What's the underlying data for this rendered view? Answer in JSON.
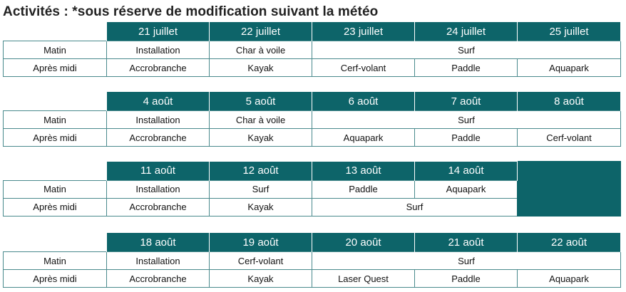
{
  "title": "Activités : *sous réserve de modification suivant la météo",
  "row_labels": {
    "morning": "Matin",
    "afternoon": "Après midi"
  },
  "weeks": [
    {
      "dates": [
        "21 juillet",
        "22 juillet",
        "23 juillet",
        "24 juillet",
        "25 juillet"
      ],
      "morning": [
        "Installation",
        "Char à voile",
        "Surf"
      ],
      "afternoon": [
        "Accrobranche",
        "Kayak",
        "Cerf-volant",
        "Paddle",
        "Aquapark"
      ]
    },
    {
      "dates": [
        "4 août",
        "5 août",
        "6 août",
        "7 août",
        "8 août"
      ],
      "morning": [
        "Installation",
        "Char à voile",
        "Surf"
      ],
      "afternoon": [
        "Accrobranche",
        "Kayak",
        "Aquapark",
        "Paddle",
        "Cerf-volant"
      ]
    },
    {
      "dates": [
        "11 août",
        "12 août",
        "13 août",
        "14 août"
      ],
      "morning": [
        "Installation",
        "Surf",
        "Paddle",
        "Aquapark"
      ],
      "afternoon": [
        "Accrobranche",
        "Kayak",
        "Surf"
      ]
    },
    {
      "dates": [
        "18 août",
        "19 août",
        "20 août",
        "21 août",
        "22 août"
      ],
      "morning": [
        "Installation",
        "Cerf-volant",
        "Surf"
      ],
      "afternoon": [
        "Accrobranche",
        "Kayak",
        "Laser Quest",
        "Paddle",
        "Aquapark"
      ]
    }
  ]
}
